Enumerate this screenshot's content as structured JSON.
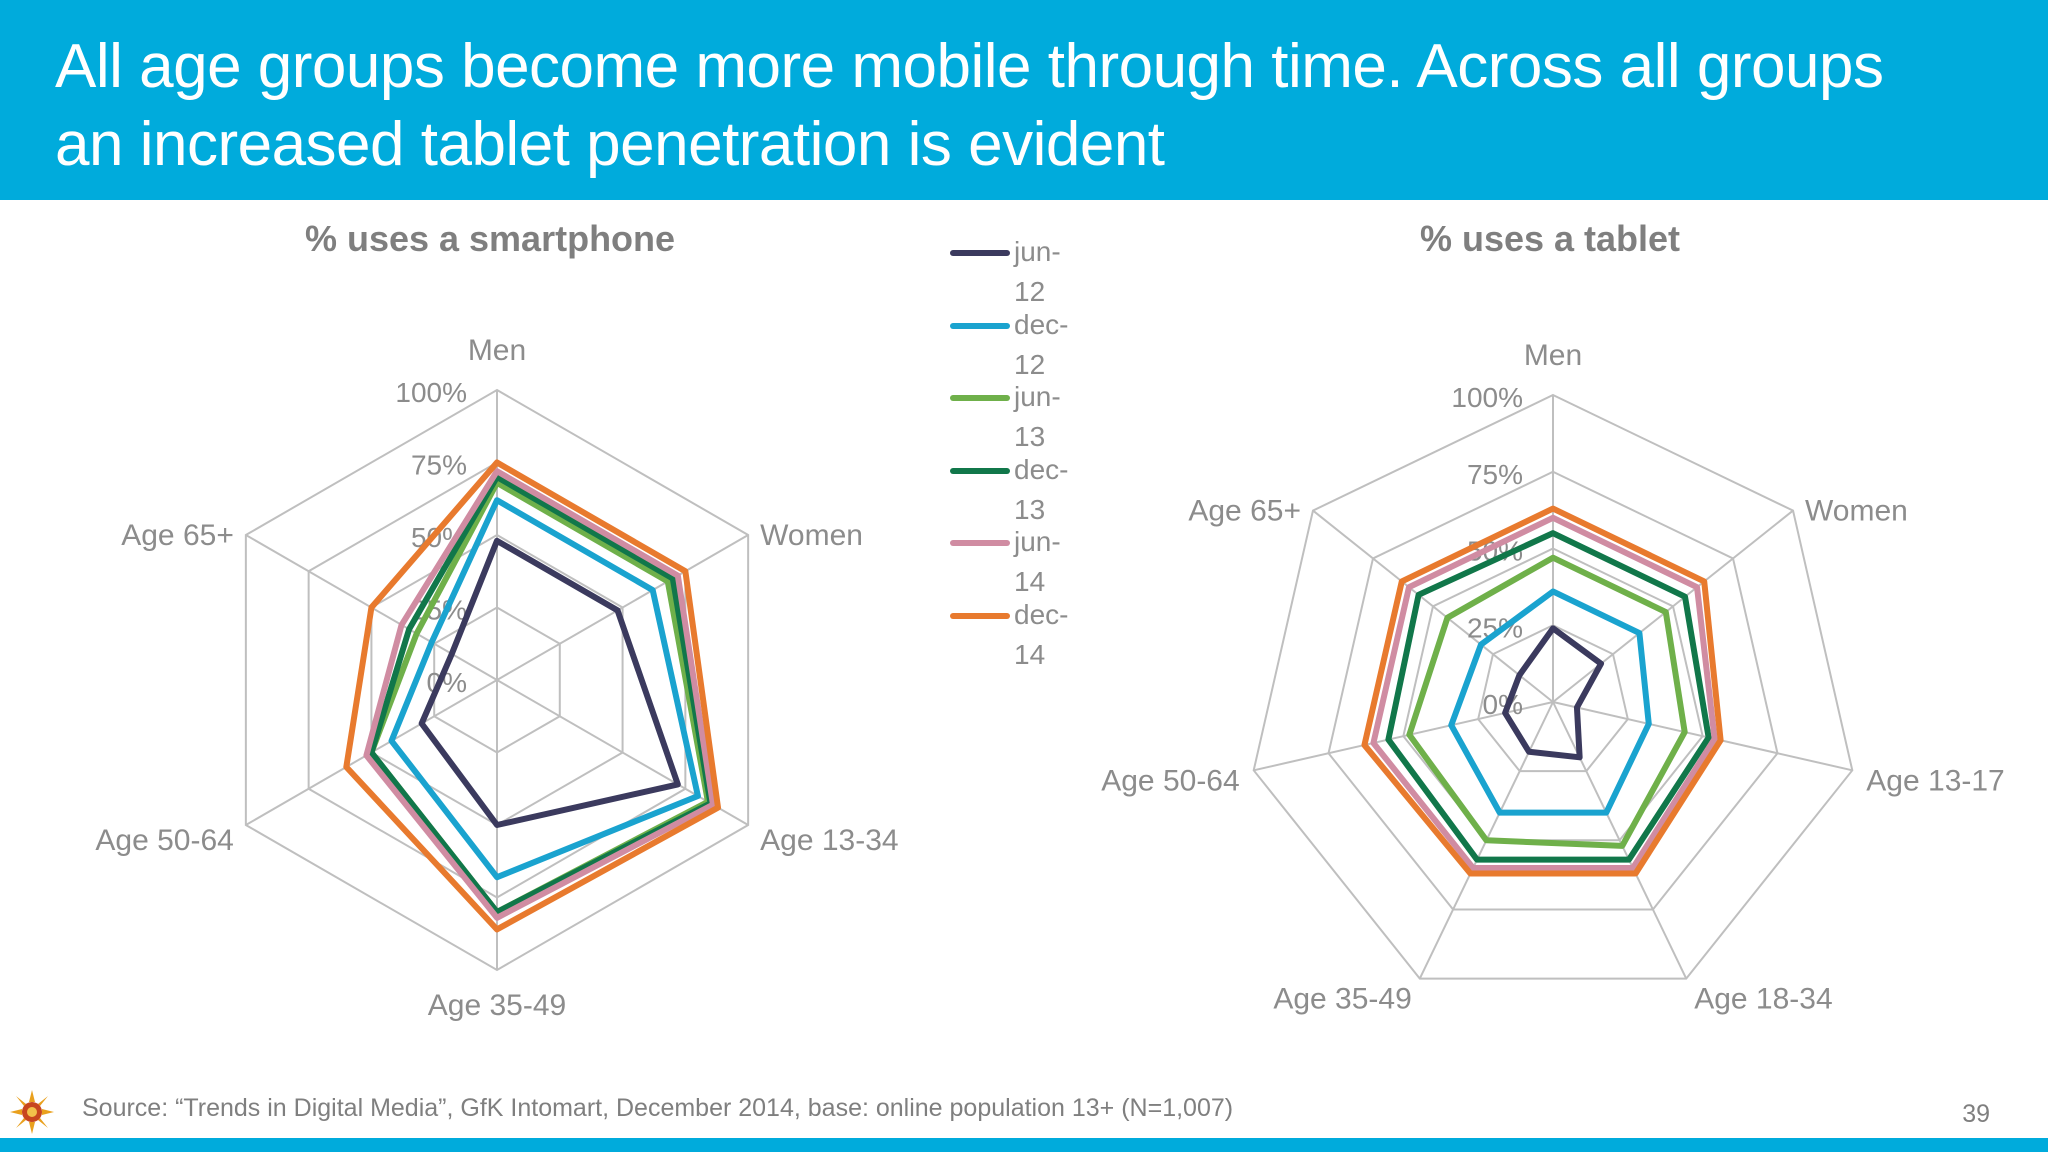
{
  "header": {
    "title": "All age groups become more mobile through time. Across all groups an increased tablet penetration is evident"
  },
  "colors": {
    "header_bg": "#00ABDC",
    "grid": "#bfbfbf"
  },
  "legend": {
    "items": [
      {
        "label": "jun-12",
        "color": "#3b3a5e"
      },
      {
        "label": "dec-12",
        "color": "#1aa3cf"
      },
      {
        "label": "jun-13",
        "color": "#6fb04a"
      },
      {
        "label": "dec-13",
        "color": "#11774a"
      },
      {
        "label": "jun-14",
        "color": "#d08ca2"
      },
      {
        "label": "dec-14",
        "color": "#e87a2e"
      }
    ]
  },
  "chart_data": [
    {
      "type": "radar",
      "title": "% uses a smartphone",
      "axes": [
        "Men",
        "Women",
        "Age 13-34",
        "Age 35-49",
        "Age 50-64",
        "Age 65+"
      ],
      "tick_labels": [
        "100%",
        "75%",
        "50%",
        "25%",
        "0%"
      ],
      "range": [
        0,
        100
      ],
      "grid": true,
      "series": [
        {
          "name": "jun-12",
          "values": [
            48,
            48,
            72,
            50,
            30,
            18
          ]
        },
        {
          "name": "dec-12",
          "values": [
            62,
            62,
            80,
            68,
            42,
            26
          ]
        },
        {
          "name": "jun-13",
          "values": [
            68,
            68,
            84,
            80,
            50,
            32
          ]
        },
        {
          "name": "dec-13",
          "values": [
            70,
            70,
            85,
            80,
            50,
            35
          ]
        },
        {
          "name": "jun-14",
          "values": [
            72,
            72,
            86,
            82,
            52,
            38
          ]
        },
        {
          "name": "dec-14",
          "values": [
            75,
            75,
            88,
            86,
            60,
            50
          ]
        }
      ]
    },
    {
      "type": "radar",
      "title": "% uses a tablet",
      "axes": [
        "Men",
        "Women",
        "Age 13-17",
        "Age 18-34",
        "Age 35-49",
        "Age 50-64",
        "Age 65+"
      ],
      "tick_labels": [
        "100%",
        "75%",
        "50%",
        "25%",
        "0%"
      ],
      "range": [
        0,
        100
      ],
      "grid": true,
      "series": [
        {
          "name": "jun-12",
          "values": [
            24,
            20,
            8,
            20,
            18,
            16,
            14
          ]
        },
        {
          "name": "dec-12",
          "values": [
            36,
            36,
            32,
            40,
            40,
            34,
            30
          ]
        },
        {
          "name": "jun-13",
          "values": [
            47,
            47,
            44,
            52,
            50,
            48,
            44
          ]
        },
        {
          "name": "dec-13",
          "values": [
            55,
            55,
            52,
            57,
            57,
            55,
            56
          ]
        },
        {
          "name": "jun-14",
          "values": [
            60,
            60,
            54,
            60,
            60,
            60,
            60
          ]
        },
        {
          "name": "dec-14",
          "values": [
            63,
            63,
            56,
            62,
            62,
            63,
            63
          ]
        }
      ]
    }
  ],
  "footer": {
    "source": "Source: “Trends in Digital Media”, GfK Intomart, December 2014, base: online population 13+ (N=1,007)",
    "page_number": "39"
  }
}
